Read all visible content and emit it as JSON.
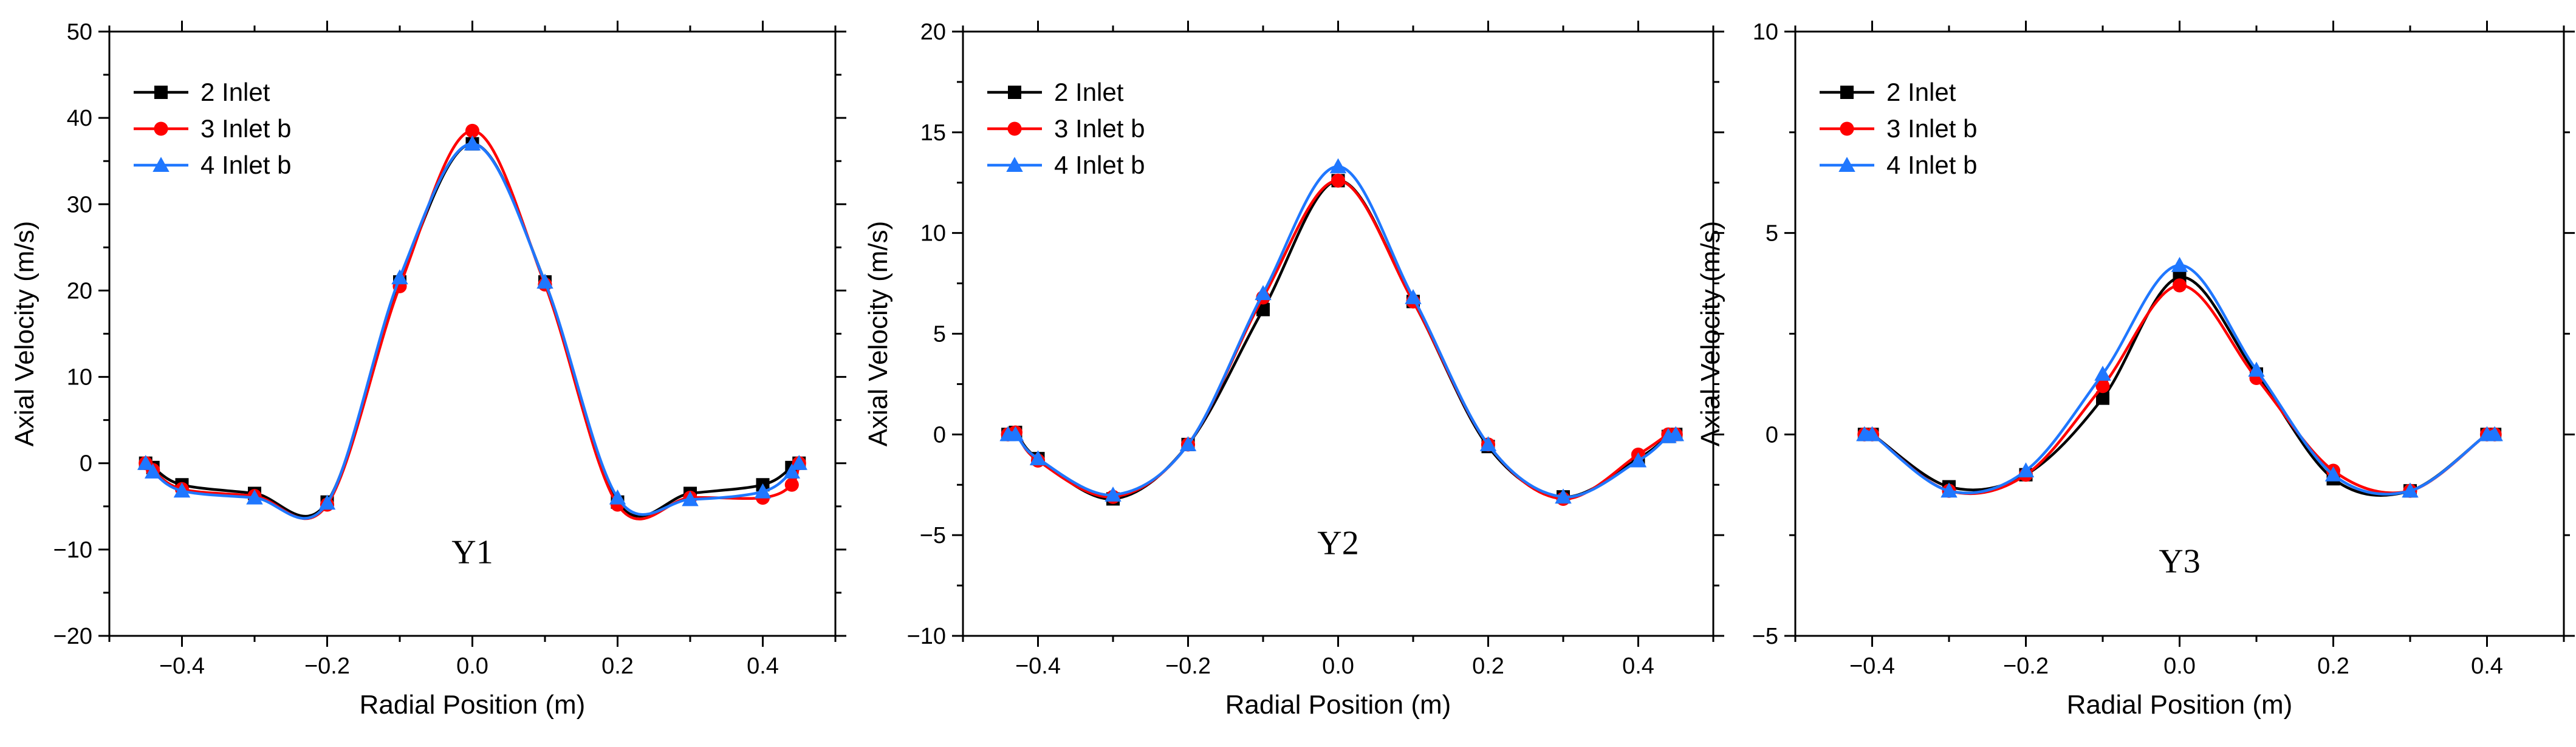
{
  "chart_data": [
    {
      "type": "line",
      "panel_label": "Y1",
      "xlabel": "Radial Position (m)",
      "ylabel": "Axial Velocity (m/s)",
      "xlim": [
        -0.5,
        0.5
      ],
      "ylim": [
        -20,
        50
      ],
      "xticks": [
        -0.4,
        -0.2,
        0.0,
        0.2,
        0.4
      ],
      "xtick_labels": [
        "−0.4",
        "−0.2",
        "0.0",
        "0.2",
        "0.4"
      ],
      "yticks": [
        -20,
        -10,
        0,
        10,
        20,
        30,
        40,
        50
      ],
      "ytick_labels": [
        "−20",
        "−10",
        "0",
        "10",
        "20",
        "30",
        "40",
        "50"
      ],
      "legend_position": "top-left",
      "series": [
        {
          "name": "2 Inlet",
          "color": "#000000",
          "marker": "square",
          "x": [
            -0.45,
            -0.44,
            -0.4,
            -0.3,
            -0.2,
            -0.1,
            0.0,
            0.1,
            0.2,
            0.3,
            0.4,
            0.44,
            0.45
          ],
          "y": [
            0,
            -0.5,
            -2.5,
            -3.5,
            -4.5,
            21,
            37,
            21,
            -4.5,
            -3.5,
            -2.5,
            -0.5,
            0
          ]
        },
        {
          "name": "3 Inlet b",
          "color": "#ff0000",
          "marker": "circle",
          "x": [
            -0.45,
            -0.44,
            -0.4,
            -0.3,
            -0.2,
            -0.1,
            0.0,
            0.1,
            0.2,
            0.3,
            0.4,
            0.44,
            0.45
          ],
          "y": [
            0,
            -0.8,
            -3,
            -3.8,
            -4.8,
            20.5,
            38.5,
            20.7,
            -4.8,
            -4,
            -4,
            -2.5,
            0
          ]
        },
        {
          "name": "4 Inlet b",
          "color": "#1f77ff",
          "marker": "triangle",
          "x": [
            -0.45,
            -0.44,
            -0.4,
            -0.3,
            -0.2,
            -0.1,
            0.0,
            0.1,
            0.2,
            0.3,
            0.4,
            0.44,
            0.45
          ],
          "y": [
            0,
            -1,
            -3.2,
            -4,
            -4.6,
            21.5,
            37,
            21,
            -4,
            -4.2,
            -3.3,
            -1,
            0
          ]
        }
      ]
    },
    {
      "type": "line",
      "panel_label": "Y2",
      "xlabel": "Radial Position (m)",
      "ylabel": "Axial Velocity (m/s)",
      "xlim": [
        -0.5,
        0.5
      ],
      "ylim": [
        -10,
        20
      ],
      "xticks": [
        -0.4,
        -0.2,
        0.0,
        0.2,
        0.4
      ],
      "xtick_labels": [
        "−0.4",
        "−0.2",
        "0.0",
        "0.2",
        "0.4"
      ],
      "yticks": [
        -10,
        -5,
        0,
        5,
        10,
        15,
        20
      ],
      "ytick_labels": [
        "−10",
        "−5",
        "0",
        "5",
        "10",
        "15",
        "20"
      ],
      "legend_position": "top-left",
      "series": [
        {
          "name": "2 Inlet",
          "color": "#000000",
          "marker": "square",
          "x": [
            -0.44,
            -0.43,
            -0.4,
            -0.3,
            -0.2,
            -0.1,
            0.0,
            0.1,
            0.2,
            0.3,
            0.4,
            0.44,
            0.45
          ],
          "y": [
            0,
            0.1,
            -1.2,
            -3.2,
            -0.5,
            6.2,
            12.6,
            6.6,
            -0.6,
            -3.1,
            -1.2,
            -0.1,
            0
          ]
        },
        {
          "name": "3 Inlet b",
          "color": "#ff0000",
          "marker": "circle",
          "x": [
            -0.44,
            -0.43,
            -0.4,
            -0.3,
            -0.2,
            -0.1,
            0.0,
            0.1,
            0.2,
            0.3,
            0.4,
            0.44,
            0.45
          ],
          "y": [
            0,
            0.1,
            -1.3,
            -3.1,
            -0.5,
            6.8,
            12.6,
            6.6,
            -0.5,
            -3.2,
            -1,
            0,
            0
          ]
        },
        {
          "name": "4 Inlet b",
          "color": "#1f77ff",
          "marker": "triangle",
          "x": [
            -0.44,
            -0.43,
            -0.4,
            -0.3,
            -0.2,
            -0.1,
            0.0,
            0.1,
            0.2,
            0.3,
            0.4,
            0.44,
            0.45
          ],
          "y": [
            0,
            0,
            -1.2,
            -3,
            -0.5,
            7,
            13.3,
            6.8,
            -0.5,
            -3.1,
            -1.3,
            -0.1,
            0
          ]
        }
      ]
    },
    {
      "type": "line",
      "panel_label": "Y3",
      "xlabel": "Radial Position (m)",
      "ylabel": "Axial Velocity (m/s)",
      "xlim": [
        -0.5,
        0.5
      ],
      "ylim": [
        -5,
        10
      ],
      "xticks": [
        -0.4,
        -0.2,
        0.0,
        0.2,
        0.4
      ],
      "xtick_labels": [
        "−0.4",
        "−0.2",
        "0.0",
        "0.2",
        "0.4"
      ],
      "yticks": [
        -5,
        0,
        5,
        10
      ],
      "ytick_labels": [
        "−5",
        "0",
        "5",
        "10"
      ],
      "legend_position": "top-left",
      "series": [
        {
          "name": "2 Inlet",
          "color": "#000000",
          "marker": "square",
          "x": [
            -0.41,
            -0.4,
            -0.3,
            -0.2,
            -0.1,
            0.0,
            0.1,
            0.2,
            0.3,
            0.4,
            0.41
          ],
          "y": [
            0,
            0,
            -1.3,
            -1,
            0.9,
            3.9,
            1.5,
            -1.1,
            -1.4,
            0,
            0
          ]
        },
        {
          "name": "3 Inlet b",
          "color": "#ff0000",
          "marker": "circle",
          "x": [
            -0.41,
            -0.4,
            -0.3,
            -0.2,
            -0.1,
            0.0,
            0.1,
            0.2,
            0.3,
            0.4,
            0.41
          ],
          "y": [
            0,
            0,
            -1.4,
            -1,
            1.2,
            3.7,
            1.4,
            -0.9,
            -1.4,
            0,
            0
          ]
        },
        {
          "name": "4 Inlet b",
          "color": "#1f77ff",
          "marker": "triangle",
          "x": [
            -0.41,
            -0.4,
            -0.3,
            -0.2,
            -0.1,
            0.0,
            0.1,
            0.2,
            0.3,
            0.4,
            0.41
          ],
          "y": [
            0,
            0,
            -1.4,
            -0.9,
            1.5,
            4.2,
            1.6,
            -1,
            -1.4,
            0,
            0
          ]
        }
      ]
    }
  ]
}
